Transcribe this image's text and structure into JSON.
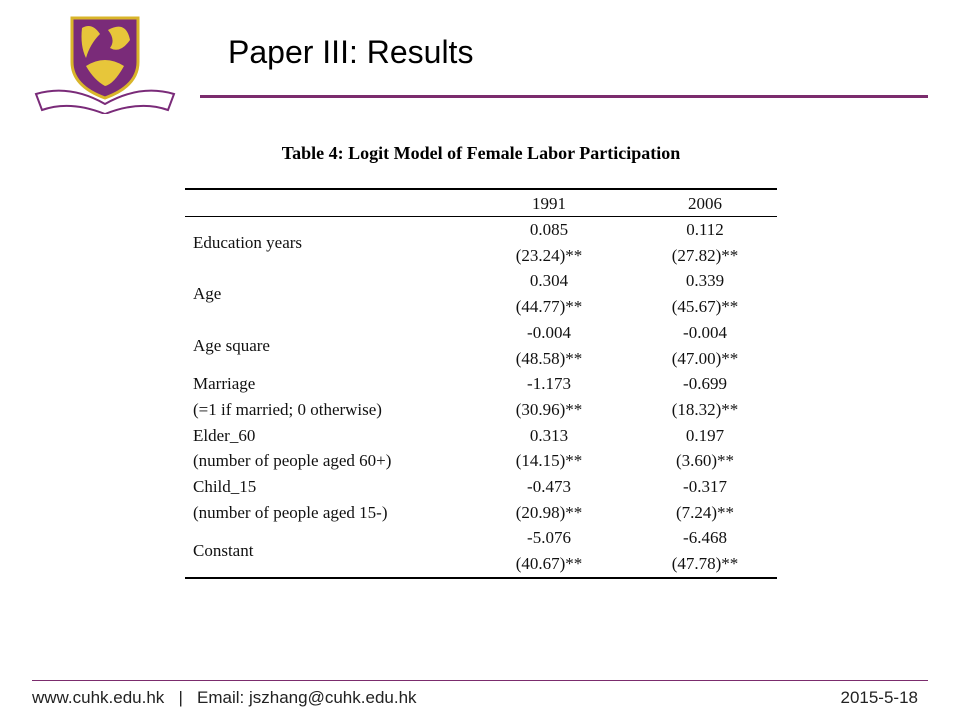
{
  "header": {
    "title": "Paper III: Results"
  },
  "table": {
    "title": "Table 4: Logit Model of Female Labor Participation",
    "columns": [
      "1991",
      "2006"
    ],
    "rows": [
      {
        "label": [
          "Education years"
        ],
        "cells": [
          [
            "0.085",
            "(23.24)**"
          ],
          [
            "0.112",
            "(27.82)**"
          ]
        ]
      },
      {
        "label": [
          "Age"
        ],
        "cells": [
          [
            "0.304",
            "(44.77)**"
          ],
          [
            "0.339",
            "(45.67)**"
          ]
        ]
      },
      {
        "label": [
          "Age square"
        ],
        "cells": [
          [
            "-0.004",
            "(48.58)**"
          ],
          [
            "-0.004",
            "(47.00)**"
          ]
        ]
      },
      {
        "label": [
          "Marriage",
          "(=1 if married; 0 otherwise)"
        ],
        "cells": [
          [
            "-1.173",
            "(30.96)**"
          ],
          [
            "-0.699",
            "(18.32)**"
          ]
        ]
      },
      {
        "label": [
          "Elder_60",
          "(number of people aged 60+)"
        ],
        "cells": [
          [
            "0.313",
            "(14.15)**"
          ],
          [
            "0.197",
            "(3.60)**"
          ]
        ]
      },
      {
        "label": [
          "Child_15",
          "(number of people aged 15-)"
        ],
        "cells": [
          [
            "-0.473",
            "(20.98)**"
          ],
          [
            "-0.317",
            "(7.24)**"
          ]
        ]
      },
      {
        "label": [
          "Constant"
        ],
        "cells": [
          [
            "-5.076",
            "(40.67)**"
          ],
          [
            "-6.468",
            "(47.78)**"
          ]
        ]
      }
    ]
  },
  "footer": {
    "left": "www.cuhk.edu.hk   |   Email: jszhang@cuhk.edu.hk",
    "date": "2015-5-18"
  }
}
